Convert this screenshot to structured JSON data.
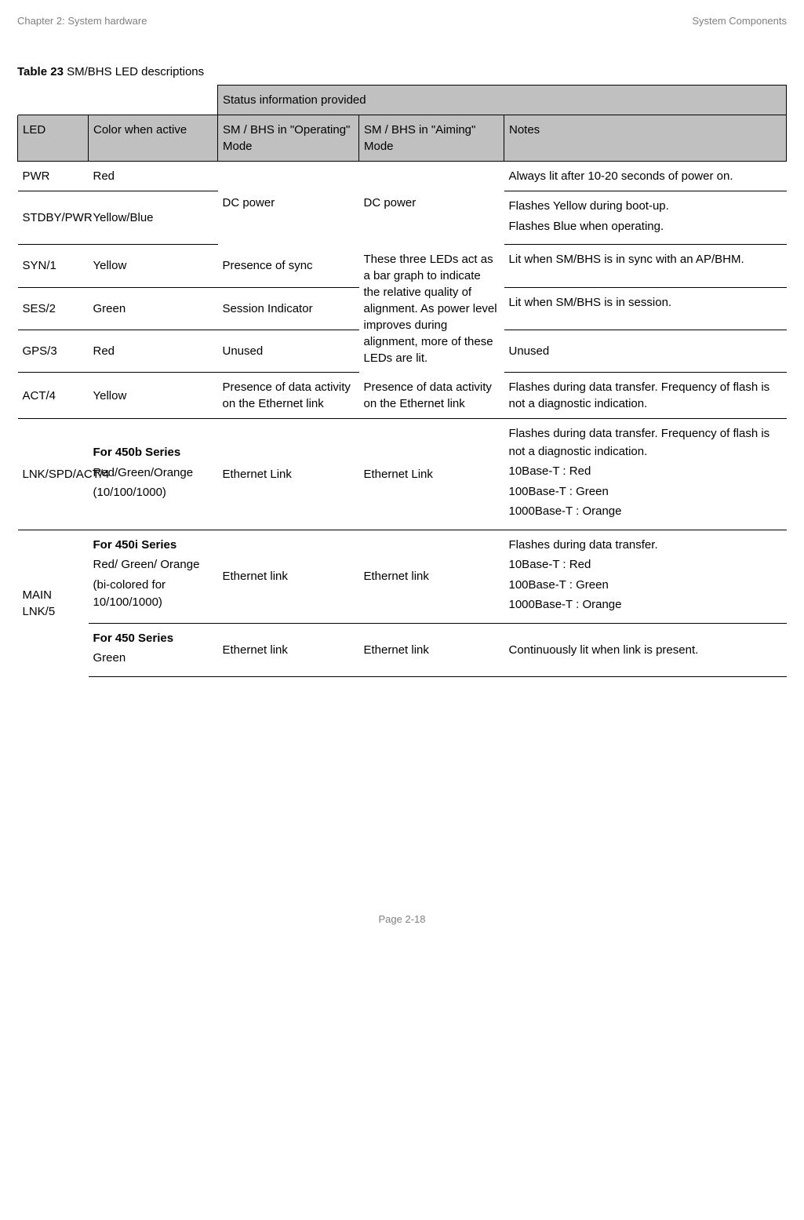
{
  "header": {
    "left": "Chapter 2:  System hardware",
    "right": "System Components"
  },
  "table_caption": {
    "bold": "Table 23",
    "rest": " SM/BHS LED descriptions"
  },
  "table": {
    "status_header": "Status information provided",
    "columns": {
      "led": "LED",
      "color": "Color when active",
      "operating": "SM / BHS in \"Operating\" Mode",
      "aiming": "SM / BHS in \"Aiming\" Mode",
      "notes": "Notes"
    },
    "rows": {
      "pwr": {
        "led": "PWR",
        "color": "Red",
        "notes": "Always lit after 10-20 seconds of power on."
      },
      "stdby": {
        "led": "STDBY/PWR",
        "color": "Yellow/Blue",
        "notes_line1": "Flashes Yellow during boot-up.",
        "notes_line2": "Flashes Blue when operating."
      },
      "dc_merged": {
        "operating": "DC power",
        "aiming": "DC power"
      },
      "syn": {
        "led": "SYN/1",
        "color": "Yellow",
        "operating": "Presence of sync",
        "aiming_line1": "These three LEDs act as a bar graph",
        "notes": "Lit when SM/BHS is in sync with an AP/BHM."
      },
      "ses": {
        "led": "SES/2",
        "color": "Green",
        "operating": "Session Indicator",
        "aiming_line2": "to indicate the relative quality of alignment. As",
        "notes": "Lit when SM/BHS is in session."
      },
      "gps": {
        "led": "GPS/3",
        "color": "Red",
        "operating": "Unused",
        "aiming_line3": "power level improves during alignment, more of these LEDs are lit.",
        "notes": "Unused"
      },
      "aiming_full": "These three LEDs act as a bar graph to indicate the relative quality of alignment. As power level improves during alignment, more of these LEDs are lit.",
      "act": {
        "led": "ACT/4",
        "color": "Yellow",
        "operating": "Presence of data activity\non the Ethernet link",
        "aiming": "Presence of data activity\non the Ethernet link",
        "notes": "Flashes during data transfer. Frequency of flash is not a diagnostic indication."
      },
      "lnkspd": {
        "led": "LNK/SPD/ACT/4",
        "color_bold": "For 450b Series",
        "color_line1": "Red/Green/Orange",
        "color_line2": "(10/100/1000)",
        "operating": "Ethernet Link",
        "aiming": "Ethernet Link",
        "notes_line1": "Flashes during data transfer. Frequency of flash is not a diagnostic indication.",
        "notes_line2": "10Base-T : Red",
        "notes_line3": "100Base-T : Green",
        "notes_line4": "1000Base-T : Orange"
      },
      "main_a": {
        "led": "MAIN LNK/5",
        "color_bold": "For 450i Series",
        "color_line1": "Red/ Green/ Orange",
        "color_line2": "(bi-colored for 10/100/1000)",
        "operating": "Ethernet link",
        "aiming": "Ethernet link",
        "notes_line1": "Flashes during data transfer.",
        "notes_line2": "10Base-T : Red",
        "notes_line3": "100Base-T : Green",
        "notes_line4": "1000Base-T : Orange"
      },
      "main_b": {
        "color_bold": "For 450 Series",
        "color_line1": "Green",
        "operating": "Ethernet link",
        "aiming": "Ethernet link",
        "notes": "Continuously lit when link is present."
      }
    }
  },
  "footer": {
    "page": "Page 2-18"
  }
}
